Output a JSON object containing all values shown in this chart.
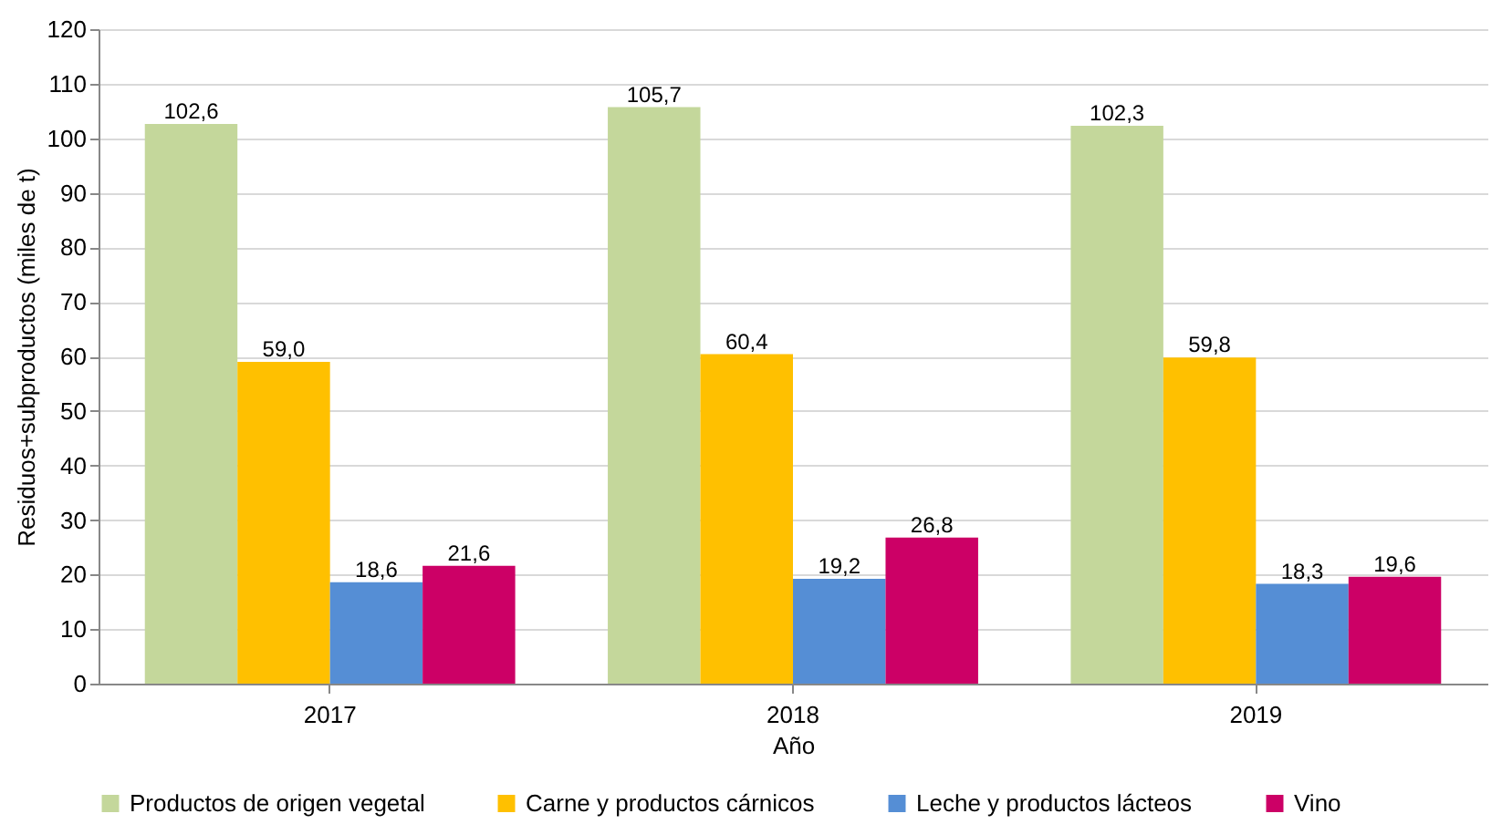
{
  "chart_data": {
    "type": "bar",
    "xlabel": "Año",
    "ylabel": "Residuos+subproductos (miles de t)",
    "categories": [
      "2017",
      "2018",
      "2019"
    ],
    "series": [
      {
        "name": "Productos de origen vegetal",
        "color": "#c4d79b",
        "values": [
          102.6,
          105.7,
          102.3
        ],
        "value_labels": [
          "102,6",
          "105,7",
          "102,3"
        ]
      },
      {
        "name": "Carne y productos cárnicos",
        "color": "#ffc000",
        "values": [
          59.0,
          60.4,
          59.8
        ],
        "value_labels": [
          "59,0",
          "60,4",
          "59,8"
        ]
      },
      {
        "name": "Leche y productos lácteos",
        "color": "#558ed5",
        "values": [
          18.6,
          19.2,
          18.3
        ],
        "value_labels": [
          "18,6",
          "19,2",
          "18,3"
        ]
      },
      {
        "name": "Vino",
        "color": "#cc0066",
        "values": [
          21.6,
          26.8,
          19.6
        ],
        "value_labels": [
          "21,6",
          "26,8",
          "19,6"
        ]
      }
    ],
    "ylim": [
      0,
      120
    ],
    "yticks": [
      0,
      10,
      20,
      30,
      40,
      50,
      60,
      70,
      80,
      90,
      100,
      110,
      120
    ],
    "grid": "y",
    "legend": "bottom"
  }
}
